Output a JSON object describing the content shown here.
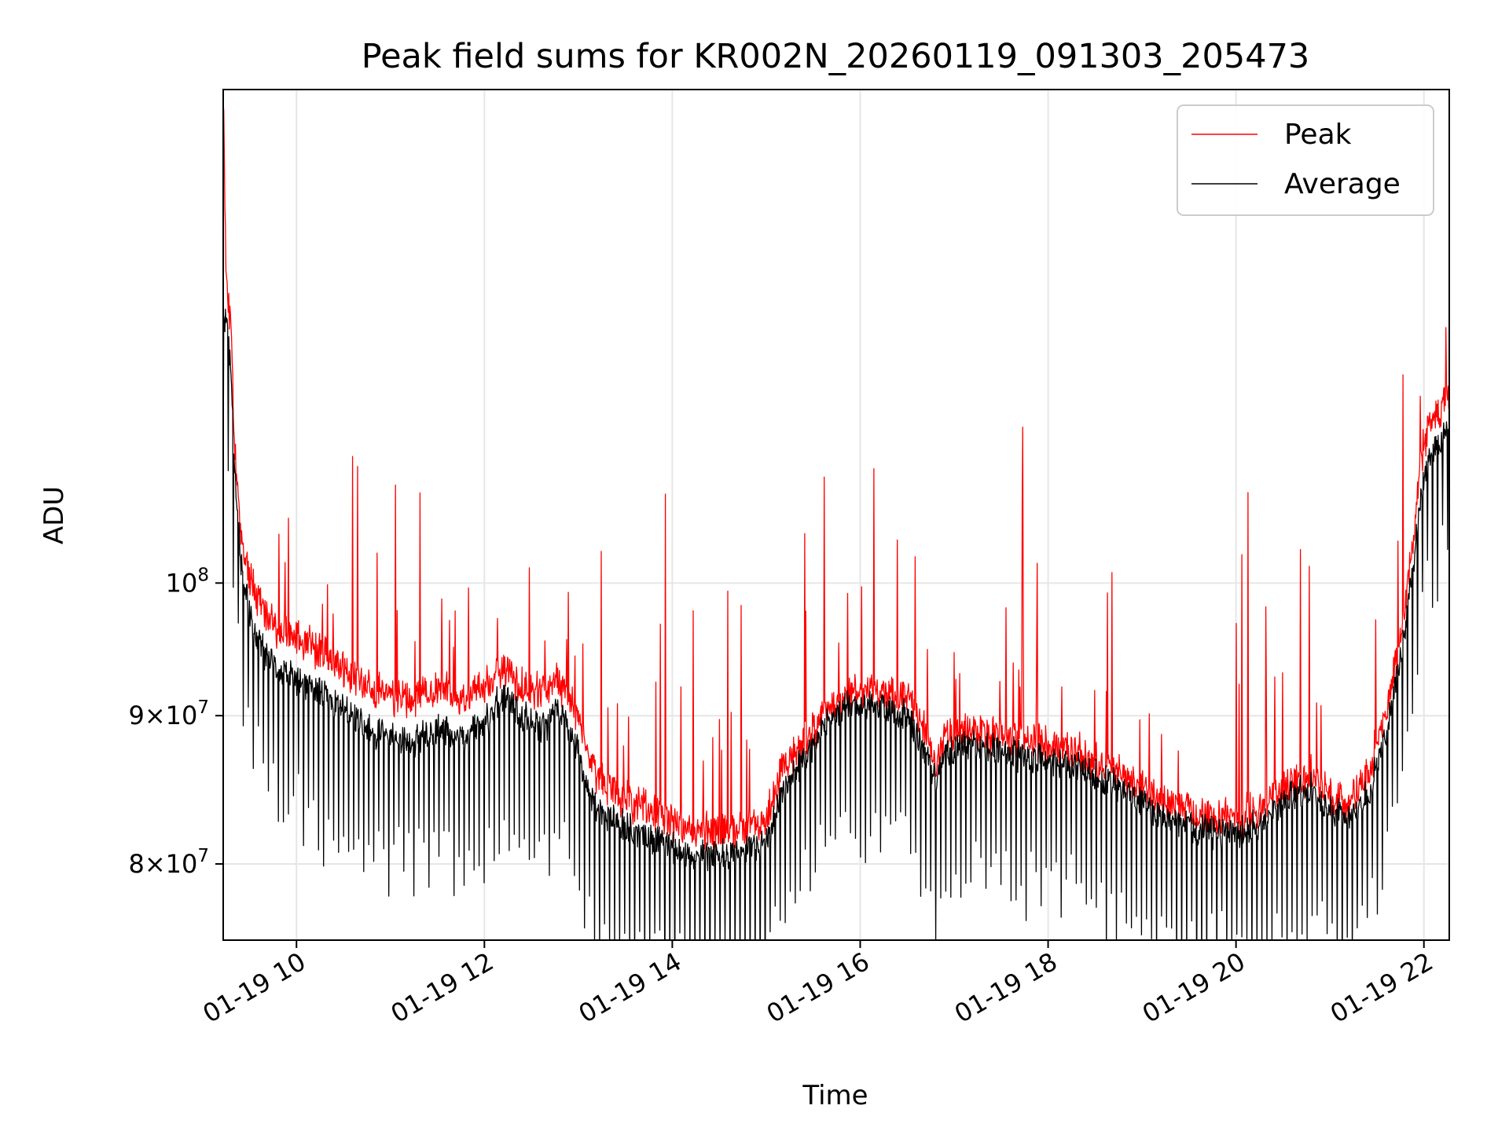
{
  "chart_data": {
    "type": "line",
    "title": "Peak field sums for KR002N_20260119_091303_205473",
    "xlabel": "Time",
    "ylabel": "ADU",
    "yscale": "log",
    "grid": true,
    "legend_position": "upper-right",
    "xlim_hours": [
      9.22,
      22.27
    ],
    "ylim": [
      75300000,
      148000000
    ],
    "x_ticks": [
      {
        "value": 10,
        "label": "01-19 10"
      },
      {
        "value": 12,
        "label": "01-19 12"
      },
      {
        "value": 14,
        "label": "01-19 14"
      },
      {
        "value": 16,
        "label": "01-19 16"
      },
      {
        "value": 18,
        "label": "01-19 18"
      },
      {
        "value": 20,
        "label": "01-19 20"
      },
      {
        "value": 22,
        "label": "01-19 22"
      }
    ],
    "y_ticks": [
      {
        "value": 100000000,
        "base": "10",
        "exp": "8"
      },
      {
        "value": 90000000,
        "base": "9×10",
        "exp": "7"
      },
      {
        "value": 80000000,
        "base": "8×10",
        "exp": "7"
      }
    ],
    "series": [
      {
        "name": "Peak",
        "color": "#ff0000",
        "x": [
          9.22,
          9.25,
          9.3,
          9.35,
          9.4,
          9.5,
          9.6,
          9.7,
          9.8,
          10.0,
          10.2,
          10.4,
          10.6,
          10.8,
          11.0,
          11.2,
          11.5,
          11.8,
          12.0,
          12.2,
          12.4,
          12.6,
          12.8,
          13.0,
          13.1,
          13.3,
          13.6,
          13.9,
          14.2,
          14.5,
          14.8,
          15.0,
          15.2,
          15.5,
          15.8,
          16.0,
          16.3,
          16.5,
          16.7,
          16.8,
          16.9,
          17.2,
          17.5,
          17.8,
          18.0,
          18.3,
          18.6,
          18.9,
          19.2,
          19.5,
          19.8,
          20.0,
          20.3,
          20.5,
          20.8,
          21.0,
          21.2,
          21.4,
          21.6,
          21.8,
          22.0,
          22.1,
          22.27
        ],
        "values": [
          148000000,
          128000000,
          122000000,
          110000000,
          104000000,
          100500000,
          98500000,
          97000000,
          96500000,
          95500000,
          95000000,
          94000000,
          93000000,
          92000000,
          91500000,
          91000000,
          92000000,
          91000000,
          92000000,
          93500000,
          92000000,
          91500000,
          92500000,
          90000000,
          87000000,
          85000000,
          84000000,
          83000000,
          82000000,
          82000000,
          82500000,
          83000000,
          86500000,
          89000000,
          91000000,
          92000000,
          91500000,
          91500000,
          89000000,
          86500000,
          88500000,
          89000000,
          88500000,
          88000000,
          88000000,
          87500000,
          86500000,
          85500000,
          84000000,
          83500000,
          83000000,
          83000000,
          83500000,
          85000000,
          86000000,
          84500000,
          84000000,
          86000000,
          90000000,
          98000000,
          112000000,
          114000000,
          116000000
        ]
      },
      {
        "name": "Average",
        "color": "#000000",
        "x": [
          9.22,
          9.25,
          9.3,
          9.35,
          9.4,
          9.5,
          9.6,
          9.7,
          9.8,
          10.0,
          10.2,
          10.4,
          10.6,
          10.8,
          11.0,
          11.2,
          11.5,
          11.8,
          12.0,
          12.2,
          12.4,
          12.6,
          12.8,
          13.0,
          13.1,
          13.3,
          13.6,
          13.9,
          14.2,
          14.5,
          14.8,
          15.0,
          15.2,
          15.5,
          15.8,
          16.0,
          16.3,
          16.5,
          16.7,
          16.8,
          16.9,
          17.2,
          17.5,
          17.8,
          18.0,
          18.3,
          18.6,
          18.9,
          19.2,
          19.5,
          19.8,
          20.0,
          20.3,
          20.5,
          20.8,
          21.0,
          21.2,
          21.4,
          21.6,
          21.8,
          22.0,
          22.1,
          22.27
        ],
        "values": [
          122000000,
          124000000,
          118000000,
          108000000,
          102000000,
          97500000,
          95500000,
          94000000,
          93500000,
          92500000,
          92000000,
          91000000,
          90000000,
          89000000,
          88500000,
          88000000,
          89000000,
          88500000,
          89500000,
          91500000,
          90000000,
          89000000,
          90500000,
          87500000,
          84500000,
          83000000,
          82000000,
          81500000,
          80500000,
          80500000,
          81000000,
          81500000,
          85000000,
          88000000,
          90500000,
          91000000,
          90500000,
          90000000,
          87500000,
          85500000,
          87500000,
          88000000,
          87500000,
          87000000,
          87000000,
          86500000,
          85500000,
          84500000,
          83000000,
          82500000,
          82000000,
          82000000,
          82500000,
          84000000,
          85000000,
          83500000,
          83000000,
          84500000,
          88500000,
          96500000,
          109000000,
          111000000,
          113000000
        ]
      }
    ]
  }
}
